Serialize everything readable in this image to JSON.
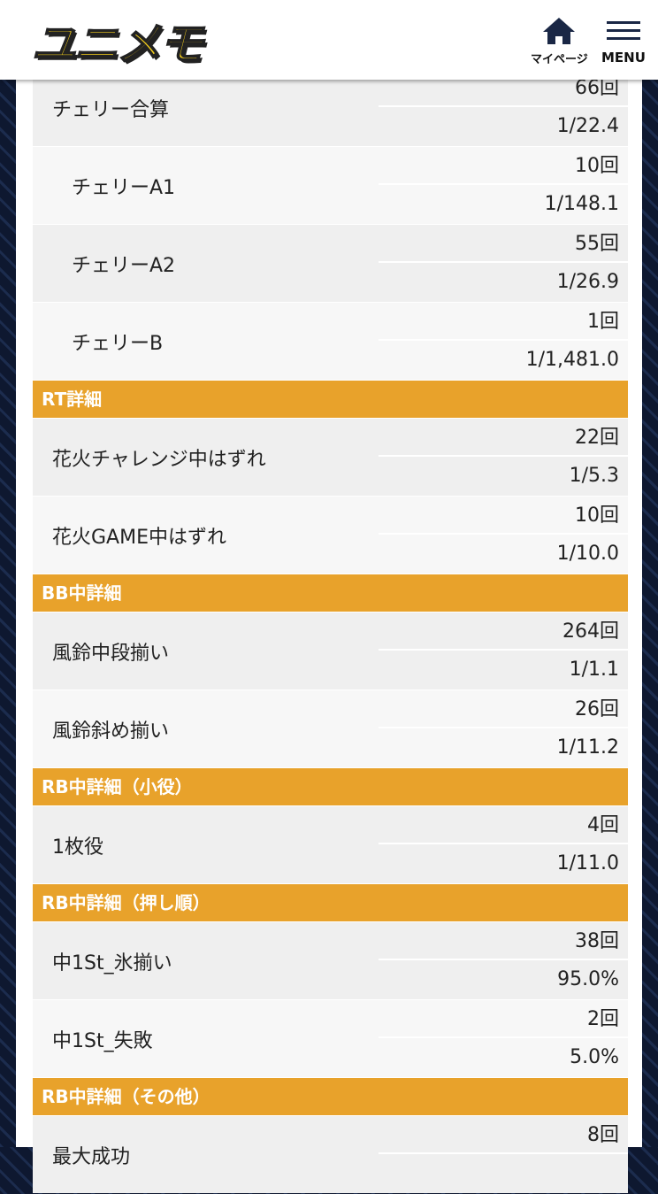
{
  "header": {
    "logo": "ユニメモ",
    "mypage": "マイページ",
    "menu": "MENU"
  },
  "sections": [
    {
      "rows": [
        {
          "label": "チェリー合算",
          "count": "66回",
          "rate": "1/22.4",
          "children": [
            {
              "label": "チェリーA1",
              "count": "10回",
              "rate": "1/148.1"
            },
            {
              "label": "チェリーA2",
              "count": "55回",
              "rate": "1/26.9"
            },
            {
              "label": "チェリーB",
              "count": "1回",
              "rate": "1/1,481.0"
            }
          ]
        }
      ]
    },
    {
      "title": "RT詳細",
      "rows": [
        {
          "label": "花火チャレンジ中はずれ",
          "count": "22回",
          "rate": "1/5.3"
        },
        {
          "label": "花火GAME中はずれ",
          "count": "10回",
          "rate": "1/10.0"
        }
      ]
    },
    {
      "title": "BB中詳細",
      "rows": [
        {
          "label": "風鈴中段揃い",
          "count": "264回",
          "rate": "1/1.1"
        },
        {
          "label": "風鈴斜め揃い",
          "count": "26回",
          "rate": "1/11.2"
        }
      ]
    },
    {
      "title": "RB中詳細（小役）",
      "rows": [
        {
          "label": "1枚役",
          "count": "4回",
          "rate": "1/11.0"
        }
      ]
    },
    {
      "title": "RB中詳細（押し順）",
      "rows": [
        {
          "label": "中1St_氷揃い",
          "count": "38回",
          "rate": "95.0%"
        },
        {
          "label": "中1St_失敗",
          "count": "2回",
          "rate": "5.0%"
        }
      ]
    },
    {
      "title": "RB中詳細（その他）",
      "rows": [
        {
          "label": "最大成功",
          "count": "8回"
        }
      ]
    }
  ]
}
